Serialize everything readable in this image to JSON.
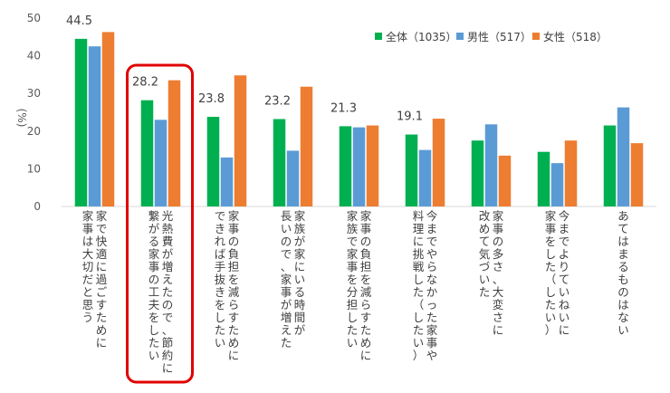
{
  "chart_data": {
    "type": "bar",
    "ylabel": "(%)",
    "ylim": [
      0,
      50
    ],
    "yticks": [
      0,
      10,
      20,
      30,
      40,
      50
    ],
    "grid": false,
    "legend_position": "top-right",
    "categories": [
      [
        "家で快適に過ごすために",
        "家事は大切だと思う"
      ],
      [
        "光熱費が増えたので、節約に",
        "繋がる家事の工夫をしたい"
      ],
      [
        "家事の負担を減らすために",
        "できれば手抜きをしたい"
      ],
      [
        "家族が家にいる時間が",
        "長いので、家事が増えた"
      ],
      [
        "家事の負担を減らすために",
        "家族で家事を分担したい"
      ],
      [
        "今までやらなかった家事や",
        "料理に挑戦した（したい）"
      ],
      [
        "家事の多さ、大変さに",
        "改めて気づいた"
      ],
      [
        "今までよりていねいに",
        "家事をした（したい）"
      ],
      [
        "あてはまるものはない"
      ]
    ],
    "series": [
      {
        "name": "全体（1035）",
        "color": "#00b050",
        "values": [
          44.5,
          28.2,
          23.8,
          23.2,
          21.3,
          19.1,
          17.5,
          14.5,
          21.5
        ]
      },
      {
        "name": "男性（517）",
        "color": "#5b9bd5",
        "values": [
          42.5,
          23.0,
          13.0,
          14.8,
          21.0,
          15.0,
          21.8,
          11.5,
          26.3
        ]
      },
      {
        "name": "女性（518）",
        "color": "#ed7d31",
        "values": [
          46.3,
          33.5,
          34.8,
          31.8,
          21.5,
          23.3,
          13.5,
          17.5,
          16.8
        ]
      }
    ],
    "data_labels": [
      "44.5",
      "28.2",
      "23.8",
      "23.2",
      "21.3",
      "19.1",
      "",
      "",
      ""
    ],
    "highlight_category_index": 1,
    "highlight_color": "#e00000"
  }
}
